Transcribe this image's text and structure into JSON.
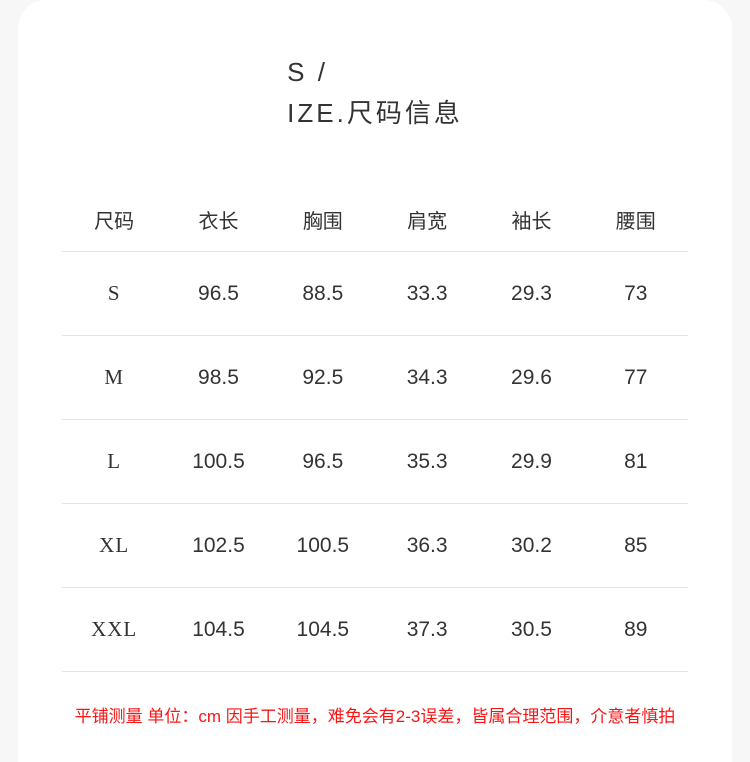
{
  "title": {
    "line1": "S /",
    "line2": "IZE.尺码信息"
  },
  "chart_data": {
    "type": "table",
    "title": "S / IZE.尺码信息",
    "columns": [
      "尺码",
      "衣长",
      "胸围",
      "肩宽",
      "袖长",
      "腰围"
    ],
    "rows": [
      [
        "S",
        "96.5",
        "88.5",
        "33.3",
        "29.3",
        "73"
      ],
      [
        "M",
        "98.5",
        "92.5",
        "34.3",
        "29.6",
        "77"
      ],
      [
        "L",
        "100.5",
        "96.5",
        "35.3",
        "29.9",
        "81"
      ],
      [
        "XL",
        "102.5",
        "100.5",
        "36.3",
        "30.2",
        "85"
      ],
      [
        "XXL",
        "104.5",
        "104.5",
        "37.3",
        "30.5",
        "89"
      ]
    ],
    "footnote": "平铺测量 单位：cm 因手工测量，难免会有2-3误差，皆属合理范围，介意者慎拍"
  },
  "colors": {
    "page_background": "#f7f7f7",
    "card_background": "#ffffff",
    "text_dark": "#333333",
    "divider": "#e4e4e4",
    "note_red": "#fb1414"
  }
}
